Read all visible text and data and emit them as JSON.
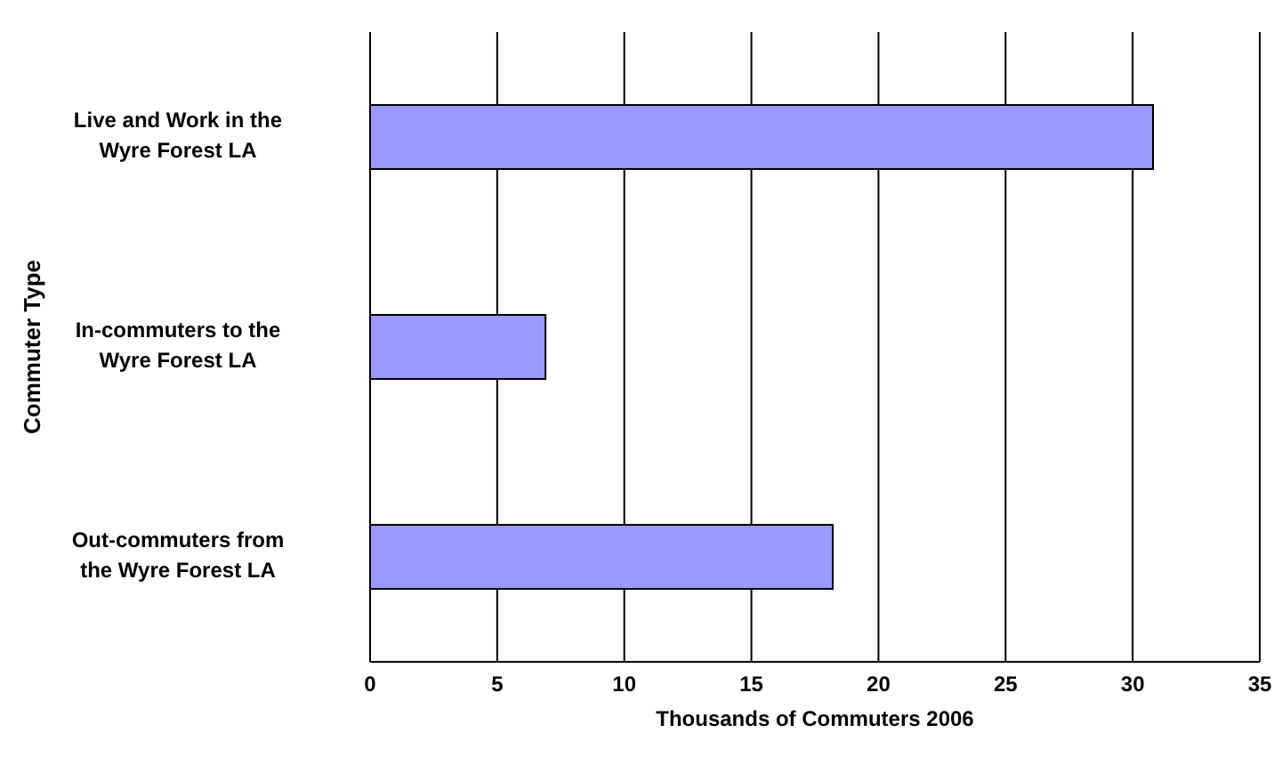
{
  "chart_data": {
    "type": "bar",
    "orientation": "horizontal",
    "xlabel": "Thousands of Commuters 2006",
    "ylabel": "Commuter Type",
    "categories": [
      "Live and Work in the Wyre Forest LA",
      "In-commuters to the Wyre Forest LA",
      "Out-commuters from the Wyre Forest LA"
    ],
    "values": [
      30.8,
      6.9,
      18.2
    ],
    "color": "#9999ff",
    "xlim": [
      0,
      35
    ],
    "xticks": [
      0,
      5,
      10,
      15,
      20,
      25,
      30,
      35
    ],
    "grid": "x"
  }
}
